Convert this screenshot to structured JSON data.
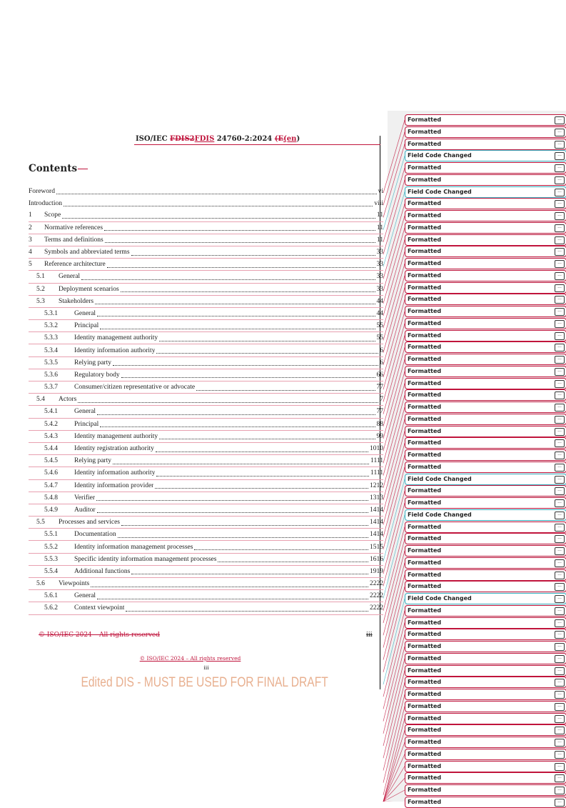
{
  "header": {
    "prefix": "ISO/IEC ",
    "deleted": "FDIS2",
    "inserted": "FDIS",
    "mid": " 24760-2:2024 ",
    "deleted2": "(E",
    "inserted2": "(en",
    ")": ")",
    "close": ")"
  },
  "title": "Contents",
  "toc": [
    {
      "n": "",
      "t": "Foreword",
      "p": "vi",
      "lvl": 0
    },
    {
      "n": "",
      "t": "Introduction",
      "p": "viii",
      "lvl": 0
    },
    {
      "n": "1",
      "t": "Scope",
      "p": "11",
      "lvl": 1
    },
    {
      "n": "2",
      "t": "Normative references",
      "p": "11",
      "lvl": 1
    },
    {
      "n": "3",
      "t": "Terms and definitions",
      "p": "11",
      "lvl": 1
    },
    {
      "n": "4",
      "t": "Symbols and abbreviated terms",
      "p": "33",
      "lvl": 1
    },
    {
      "n": "5",
      "t": "Reference architecture",
      "p": "33",
      "lvl": 1
    },
    {
      "n": "5.1",
      "t": "General",
      "p": "33",
      "lvl": 2
    },
    {
      "n": "5.2",
      "t": "Deployment scenarios",
      "p": "33",
      "lvl": 2
    },
    {
      "n": "5.3",
      "t": "Stakeholders",
      "p": "44",
      "lvl": 2
    },
    {
      "n": "5.3.1",
      "t": "General",
      "p": "44",
      "lvl": 3
    },
    {
      "n": "5.3.2",
      "t": "Principal",
      "p": "55",
      "lvl": 3
    },
    {
      "n": "5.3.3",
      "t": "Identity management authority",
      "p": "55",
      "lvl": 3
    },
    {
      "n": "5.3.4",
      "t": "Identity information authority",
      "p": "6",
      "lvl": 3
    },
    {
      "n": "5.3.5",
      "t": "Relying party",
      "p": "6",
      "lvl": 3
    },
    {
      "n": "5.3.6",
      "t": "Regulatory body",
      "p": "66",
      "lvl": 3
    },
    {
      "n": "5.3.7",
      "t": "Consumer/citizen representative or advocate",
      "p": "77",
      "lvl": 3
    },
    {
      "n": "5.4",
      "t": "Actors",
      "p": "7",
      "lvl": 2
    },
    {
      "n": "5.4.1",
      "t": "General",
      "p": "77",
      "lvl": 3
    },
    {
      "n": "5.4.2",
      "t": "Principal",
      "p": "88",
      "lvl": 3
    },
    {
      "n": "5.4.3",
      "t": "Identity management authority",
      "p": "99",
      "lvl": 3
    },
    {
      "n": "5.4.4",
      "t": "Identity registration authority",
      "p": "1010",
      "lvl": 3
    },
    {
      "n": "5.4.5",
      "t": "Relying party",
      "p": "1111",
      "lvl": 3
    },
    {
      "n": "5.4.6",
      "t": "Identity information authority",
      "p": "1111",
      "lvl": 3
    },
    {
      "n": "5.4.7",
      "t": "Identity information provider",
      "p": "1212",
      "lvl": 3
    },
    {
      "n": "5.4.8",
      "t": "Verifier",
      "p": "1313",
      "lvl": 3
    },
    {
      "n": "5.4.9",
      "t": "Auditor",
      "p": "1414",
      "lvl": 3
    },
    {
      "n": "5.5",
      "t": "Processes and services",
      "p": "1414",
      "lvl": 2
    },
    {
      "n": "5.5.1",
      "t": "Documentation",
      "p": "1414",
      "lvl": 3
    },
    {
      "n": "5.5.2",
      "t": "Identity information management processes",
      "p": "1515",
      "lvl": 3
    },
    {
      "n": "5.5.3",
      "t": "Specific identity information management processes",
      "p": "1616",
      "lvl": 3
    },
    {
      "n": "5.5.4",
      "t": "Additional functions",
      "p": "1919",
      "lvl": 3
    },
    {
      "n": "5.6",
      "t": "Viewpoints",
      "p": "2222",
      "lvl": 2
    },
    {
      "n": "5.6.1",
      "t": "General",
      "p": "2222",
      "lvl": 3
    },
    {
      "n": "5.6.2",
      "t": "Context viewpoint",
      "p": "2222",
      "lvl": 3
    }
  ],
  "footer": {
    "deleted": "© ISO/IEC 2024 – All rights reserved",
    "deleted_page": "iii",
    "inserted": "© ISO/IEC 2024 – All rights reserved",
    "page": "iii"
  },
  "watermark": "Edited DIS - MUST BE USED FOR FINAL DRAFT",
  "balloons": {
    "formatted": "Formatted",
    "field_code": "Field Code Changed",
    "more": "...",
    "field_code_indices": [
      3,
      6,
      30,
      33,
      40
    ],
    "count": 58
  },
  "colors": {
    "change": "#c0143c",
    "field_code": "#3ab0c0",
    "watermark": "#e8b090"
  }
}
